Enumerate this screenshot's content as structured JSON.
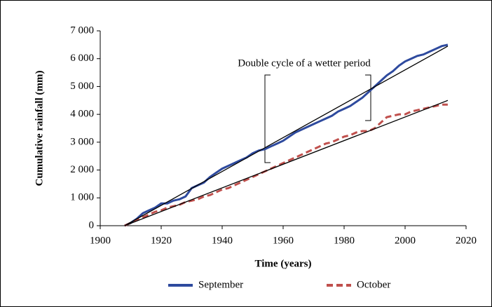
{
  "chart_data": {
    "type": "line",
    "annotation": "Double cycle of a wetter period",
    "xlabel": "Time (years)",
    "ylabel": "Cumulative rainfall (mm)",
    "x": [
      1908,
      1910,
      1912,
      1914,
      1916,
      1918,
      1920,
      1922,
      1924,
      1926,
      1928,
      1930,
      1932,
      1934,
      1936,
      1938,
      1940,
      1942,
      1944,
      1946,
      1948,
      1950,
      1952,
      1954,
      1956,
      1958,
      1960,
      1962,
      1964,
      1966,
      1968,
      1970,
      1972,
      1974,
      1976,
      1978,
      1980,
      1982,
      1984,
      1986,
      1988,
      1990,
      1992,
      1994,
      1996,
      1998,
      2000,
      2002,
      2004,
      2006,
      2008,
      2010,
      2012,
      2014
    ],
    "series": [
      {
        "name": "September",
        "color": "#2e4a9e",
        "dashed": false,
        "values": [
          0,
          100,
          250,
          450,
          550,
          650,
          800,
          800,
          900,
          950,
          1050,
          1350,
          1450,
          1550,
          1750,
          1900,
          2050,
          2150,
          2250,
          2350,
          2450,
          2600,
          2700,
          2750,
          2850,
          2950,
          3050,
          3200,
          3350,
          3450,
          3550,
          3650,
          3750,
          3850,
          3950,
          4100,
          4200,
          4300,
          4450,
          4600,
          4800,
          5000,
          5200,
          5400,
          5550,
          5750,
          5900,
          6000,
          6100,
          6150,
          6250,
          6350,
          6450,
          6500
        ]
      },
      {
        "name": "October",
        "color": "#c0504d",
        "dashed": true,
        "values": [
          0,
          100,
          200,
          300,
          400,
          500,
          550,
          650,
          700,
          750,
          850,
          900,
          950,
          1050,
          1100,
          1200,
          1300,
          1350,
          1450,
          1550,
          1650,
          1750,
          1850,
          1950,
          2050,
          2150,
          2250,
          2350,
          2450,
          2550,
          2650,
          2750,
          2850,
          2950,
          3000,
          3100,
          3200,
          3250,
          3350,
          3400,
          3400,
          3500,
          3700,
          3900,
          3950,
          4000,
          4000,
          4100,
          4150,
          4200,
          4250,
          4300,
          4350,
          4350
        ]
      }
    ],
    "trendlines": [
      {
        "color": "#000000",
        "x": [
          1908,
          2014
        ],
        "values": [
          0,
          6450
        ]
      },
      {
        "color": "#000000",
        "x": [
          1908,
          2014
        ],
        "values": [
          0,
          4500
        ]
      }
    ],
    "xlim": [
      1900,
      2020
    ],
    "xticks": [
      1900,
      1920,
      1940,
      1960,
      1980,
      2000,
      2020
    ],
    "ylim": [
      0,
      7000
    ],
    "yticks": [
      0,
      {
        "value": 1000,
        "label": "1 000"
      },
      {
        "value": 2000,
        "label": "2 000"
      },
      {
        "value": 3000,
        "label": "3 000"
      },
      {
        "value": 4000,
        "label": "4 000"
      },
      {
        "value": 5000,
        "label": "5 000"
      },
      {
        "value": 6000,
        "label": "6 000"
      },
      {
        "value": 7000,
        "label": "7 000"
      }
    ],
    "grid": false,
    "legend": "bottom"
  }
}
